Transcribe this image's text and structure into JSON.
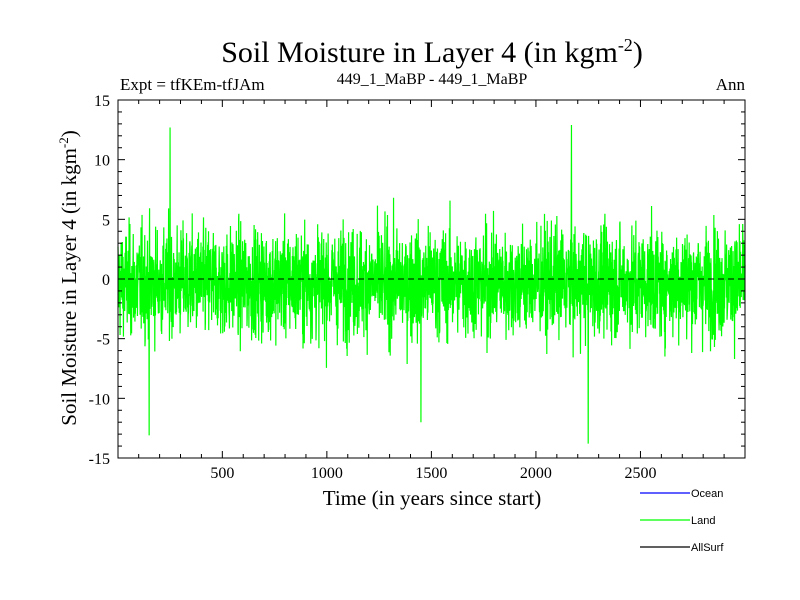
{
  "chart_data": {
    "type": "line",
    "title_main": "Soil Moisture in Layer 4 (in kgm",
    "title_sup": "-2",
    "title_close": ")",
    "subtitle_left": "Expt = tfKEm-tfJAm",
    "subtitle_center": "449_1_MaBP - 449_1_MaBP",
    "subtitle_right": "Ann",
    "xlabel": "Time (in years since start)",
    "ylabel_main": "Soil Moisture in Layer 4 (in kgm",
    "ylabel_sup": "-2",
    "ylabel_close": ")",
    "xlim": [
      1,
      3000
    ],
    "ylim": [
      -15,
      15
    ],
    "x_ticks": [
      500,
      1000,
      1500,
      2000,
      2500
    ],
    "x_tick_labels": [
      "500",
      "1000",
      "1500",
      "2000",
      "2500"
    ],
    "y_ticks": [
      -15,
      -10,
      -5,
      0,
      5,
      10,
      15
    ],
    "y_tick_labels": [
      "-15",
      "-10",
      "-5",
      "0",
      "5",
      "10",
      "15"
    ],
    "zero_line": {
      "y": 0,
      "style": "dashed",
      "color": "#000000"
    },
    "series": [
      {
        "name": "Ocean",
        "color": "#0000ff",
        "values": []
      },
      {
        "name": "Land",
        "color": "#00ff00",
        "x_range": [
          1,
          3000
        ],
        "n_points": 3000,
        "y_mean": 0,
        "y_typical_range": [
          -6,
          5
        ],
        "y_min": -13.8,
        "y_max": 12.9,
        "extremes": [
          {
            "x": 150,
            "y": -13.1
          },
          {
            "x": 250,
            "y": 12.7
          },
          {
            "x": 1450,
            "y": -12.0
          },
          {
            "x": 2170,
            "y": 12.9
          },
          {
            "x": 2250,
            "y": -13.8
          }
        ]
      },
      {
        "name": "AllSurf",
        "color": "#000000",
        "values": []
      }
    ],
    "legend": {
      "placement": "bottom-right",
      "entries": [
        {
          "label": "Ocean",
          "color": "#0000ff"
        },
        {
          "label": "Land",
          "color": "#00ff00"
        },
        {
          "label": "AllSurf",
          "color": "#000000"
        }
      ]
    }
  }
}
